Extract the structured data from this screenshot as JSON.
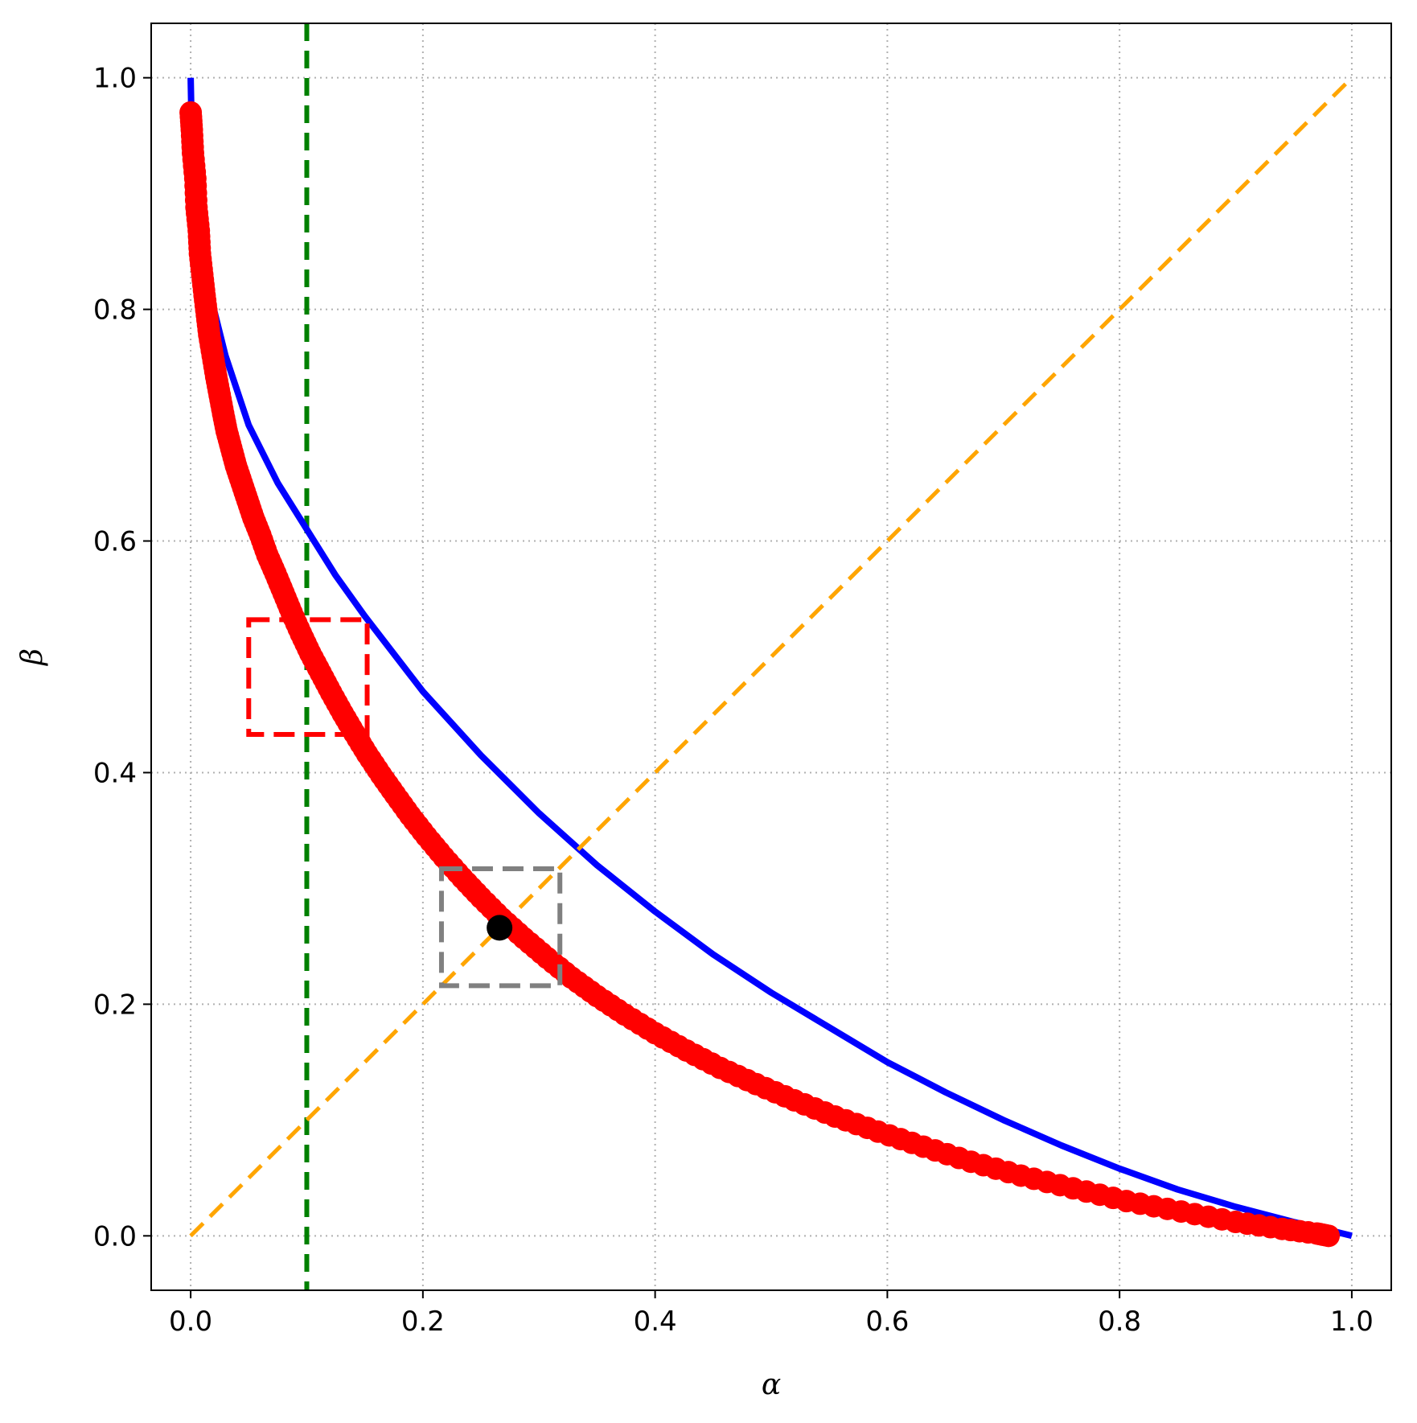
{
  "chart_data": {
    "type": "line",
    "title": "",
    "xlabel": "α",
    "ylabel": "β",
    "xlim": [
      -0.034,
      1.034
    ],
    "ylim": [
      -0.047,
      1.047
    ],
    "grid": true,
    "x_ticks": [
      0.0,
      0.2,
      0.4,
      0.6,
      0.8,
      1.0
    ],
    "x_tick_labels": [
      "0.0",
      "0.2",
      "0.4",
      "0.6",
      "0.8",
      "1.0"
    ],
    "y_ticks": [
      0.0,
      0.2,
      0.4,
      0.6,
      0.8,
      1.0
    ],
    "y_tick_labels": [
      "0.0",
      "0.2",
      "0.4",
      "0.6",
      "0.8",
      "1.0"
    ],
    "series": [
      {
        "kind": "line",
        "color": "#0000ff",
        "x": [
          0.0,
          0.001,
          0.005,
          0.01,
          0.02,
          0.03,
          0.05,
          0.075,
          0.1,
          0.125,
          0.15,
          0.2,
          0.25,
          0.3,
          0.35,
          0.4,
          0.45,
          0.5,
          0.55,
          0.6,
          0.65,
          0.7,
          0.75,
          0.8,
          0.85,
          0.9,
          0.95,
          0.98,
          1.0
        ],
        "y": [
          1.0,
          0.95,
          0.9,
          0.86,
          0.8,
          0.76,
          0.7,
          0.65,
          0.61,
          0.57,
          0.535,
          0.47,
          0.415,
          0.365,
          0.32,
          0.28,
          0.243,
          0.21,
          0.18,
          0.15,
          0.124,
          0.1,
          0.078,
          0.058,
          0.04,
          0.025,
          0.012,
          0.005,
          0.0
        ]
      },
      {
        "kind": "scatter",
        "color": "#ff0000",
        "x": [
          0.0,
          0.001,
          0.002,
          0.004,
          0.005,
          0.007,
          0.008,
          0.01,
          0.012,
          0.014,
          0.016,
          0.019,
          0.022,
          0.025,
          0.028,
          0.031,
          0.035,
          0.039,
          0.044,
          0.049,
          0.054,
          0.06,
          0.066,
          0.073,
          0.08,
          0.087,
          0.095,
          0.103,
          0.112,
          0.121,
          0.131,
          0.141,
          0.152,
          0.164,
          0.176,
          0.189,
          0.203,
          0.218,
          0.234,
          0.25,
          0.268,
          0.287,
          0.307,
          0.328,
          0.35,
          0.374,
          0.4,
          0.427,
          0.456,
          0.487,
          0.52,
          0.555,
          0.592,
          0.631,
          0.672,
          0.715,
          0.76,
          0.806,
          0.853,
          0.9,
          0.94,
          0.97,
          0.98
        ],
        "y": [
          0.97,
          0.955,
          0.935,
          0.913,
          0.888,
          0.868,
          0.848,
          0.83,
          0.812,
          0.795,
          0.778,
          0.76,
          0.742,
          0.726,
          0.71,
          0.695,
          0.68,
          0.665,
          0.65,
          0.635,
          0.62,
          0.605,
          0.588,
          0.572,
          0.555,
          0.538,
          0.52,
          0.503,
          0.486,
          0.469,
          0.451,
          0.434,
          0.416,
          0.398,
          0.381,
          0.363,
          0.345,
          0.327,
          0.309,
          0.292,
          0.274,
          0.257,
          0.24,
          0.223,
          0.207,
          0.191,
          0.175,
          0.16,
          0.145,
          0.131,
          0.117,
          0.103,
          0.09,
          0.077,
          0.064,
          0.052,
          0.041,
          0.03,
          0.021,
          0.012,
          0.006,
          0.002,
          0.0
        ]
      },
      {
        "kind": "line",
        "color": "#ffa500",
        "dashed": true,
        "x": [
          0.0,
          1.0
        ],
        "y": [
          0.0,
          1.0
        ]
      }
    ],
    "vertical_line": {
      "x": 0.1,
      "color": "#008000",
      "dashed": true
    },
    "marker_point": {
      "x": 0.266,
      "y": 0.266,
      "color": "#000000"
    },
    "boxes": [
      {
        "x0": 0.05,
        "x1": 0.152,
        "y0": 0.433,
        "y1": 0.532,
        "color": "#ff0000"
      },
      {
        "x0": 0.216,
        "x1": 0.318,
        "y0": 0.216,
        "y1": 0.317,
        "color": "#808080"
      }
    ]
  }
}
